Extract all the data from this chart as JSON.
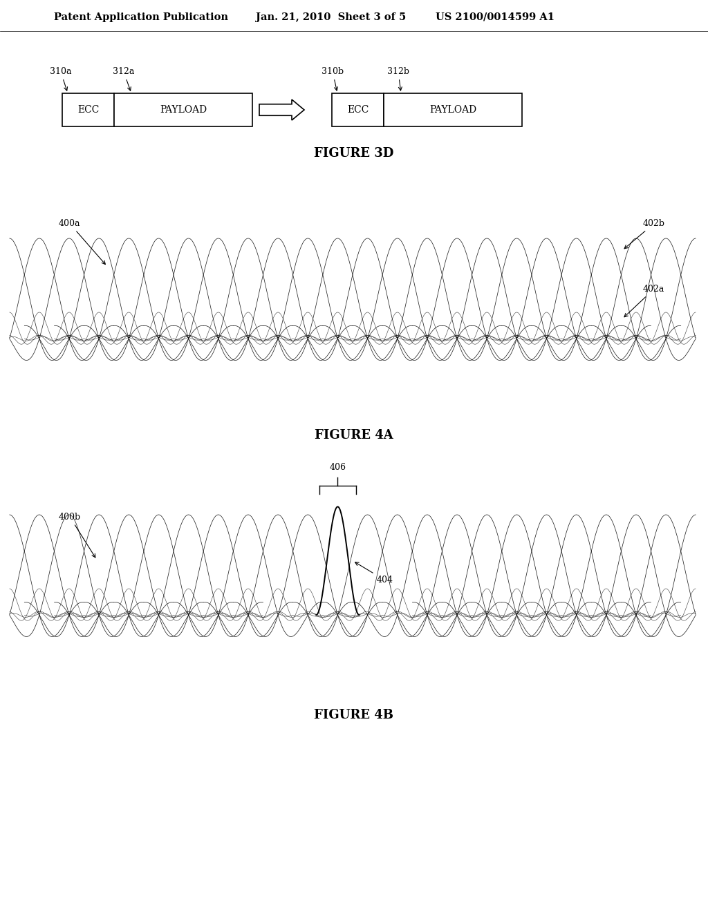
{
  "bg_color": "#ffffff",
  "header_left": "Patent Application Publication",
  "header_mid": "Jan. 21, 2010  Sheet 3 of 5",
  "header_right": "US 2100/0014599 A1",
  "header_fontsize": 10.5,
  "fig3d_title": "FIGURE 3D",
  "fig4a_title": "FIGURE 4A",
  "fig4b_title": "FIGURE 4B",
  "figure_title_fontsize": 13,
  "label_fontsize": 9,
  "num_carriers": 20,
  "nulled_channel": 9
}
